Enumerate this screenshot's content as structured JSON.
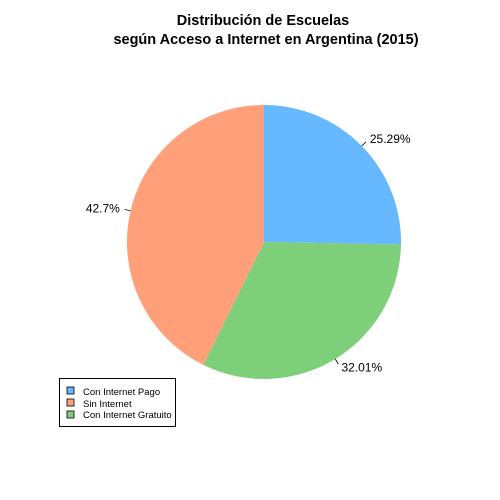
{
  "chart_data": {
    "type": "pie",
    "title_lines": [
      "Distribución de Escuelas",
      "según Acceso a Internet en Argentina (2015)"
    ],
    "slices": [
      {
        "name": "Con Internet Pago",
        "value": 25.29,
        "label": "25.29%",
        "color": "#66b8ff"
      },
      {
        "name": "Con Internet Gratuito",
        "value": 32.01,
        "label": "32.01%",
        "color": "#7ecf7a"
      },
      {
        "name": "Sin Internet",
        "value": 42.7,
        "label": "42.7%",
        "color": "#ffa07a"
      }
    ],
    "start": "12 o'clock",
    "direction": "clockwise",
    "legend": {
      "position": "bottom-left",
      "entries": [
        {
          "name": "Con Internet Pago",
          "color": "#66b8ff"
        },
        {
          "name": "Sin Internet",
          "color": "#ffa07a"
        },
        {
          "name": "Con Internet Gratuito",
          "color": "#7ecf7a"
        }
      ]
    }
  }
}
